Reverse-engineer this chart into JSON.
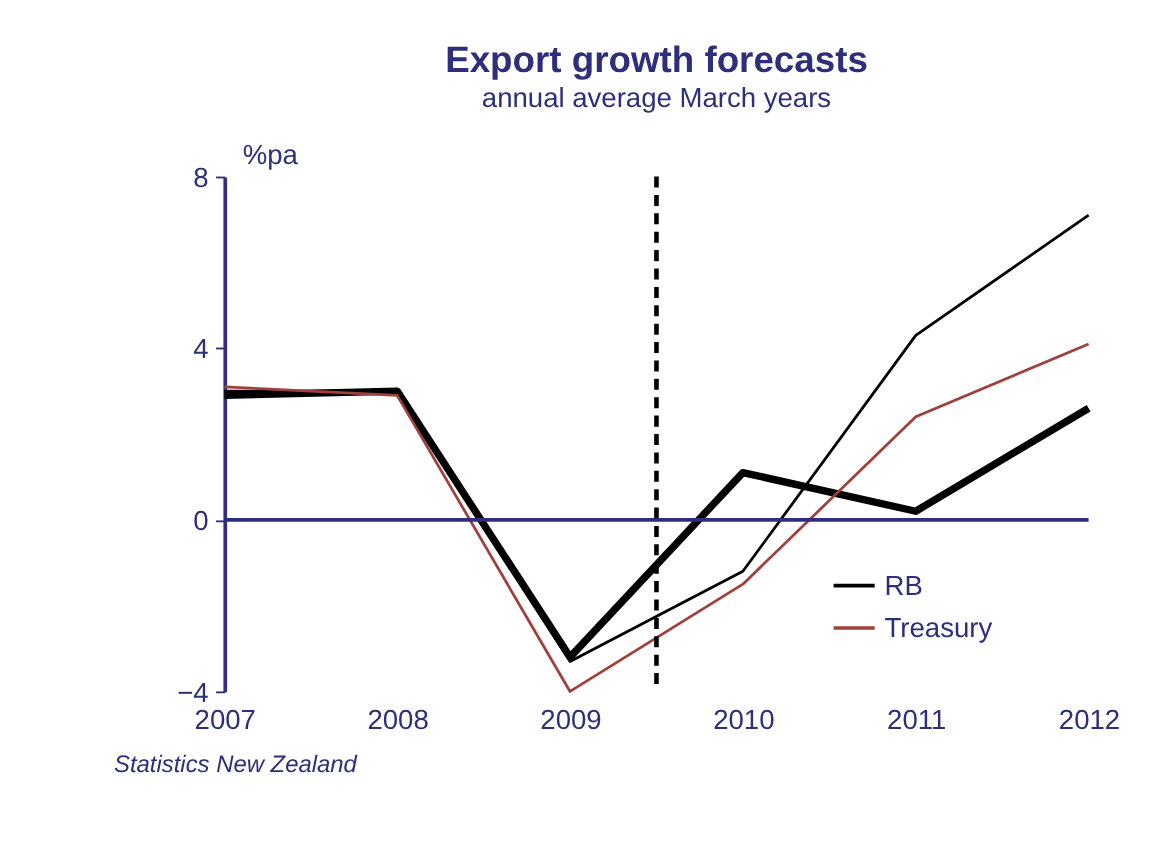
{
  "chart_data": {
    "type": "line",
    "title": "Export growth forecasts",
    "subtitle": "annual average March years",
    "ylabel": "%pa",
    "x": [
      2007,
      2008,
      2009,
      2010,
      2011,
      2012
    ],
    "xlim": [
      2007,
      2012
    ],
    "xticks": [
      2007,
      2008,
      2009,
      2010,
      2011,
      2012
    ],
    "ylim": [
      -4,
      8
    ],
    "yticks": [
      -4,
      0,
      4,
      8
    ],
    "grid": false,
    "legend": "bottom right",
    "line_style": "solid",
    "marker": "none",
    "series": [
      {
        "color": "#000000",
        "values": [
          2.9,
          3.0,
          -3.2,
          1.1,
          0.2,
          2.6
        ]
      },
      {
        "name": "RB",
        "color": "#000000",
        "values": [
          3.0,
          3.0,
          -3.3,
          -1.2,
          4.3,
          7.1
        ]
      },
      {
        "name": "Treasury",
        "color": "#a0403c",
        "values": [
          3.1,
          2.9,
          -4.0,
          -1.5,
          2.4,
          4.1
        ]
      }
    ],
    "ref_lines": [
      {
        "axis": "x",
        "value": 2009.5,
        "line_style": "dashed",
        "color": "#000000"
      },
      {
        "axis": "y",
        "value": 0,
        "line_style": "solid",
        "color": "#2e2e7a"
      }
    ],
    "annotations": [
      "Statistics New Zealand"
    ]
  }
}
